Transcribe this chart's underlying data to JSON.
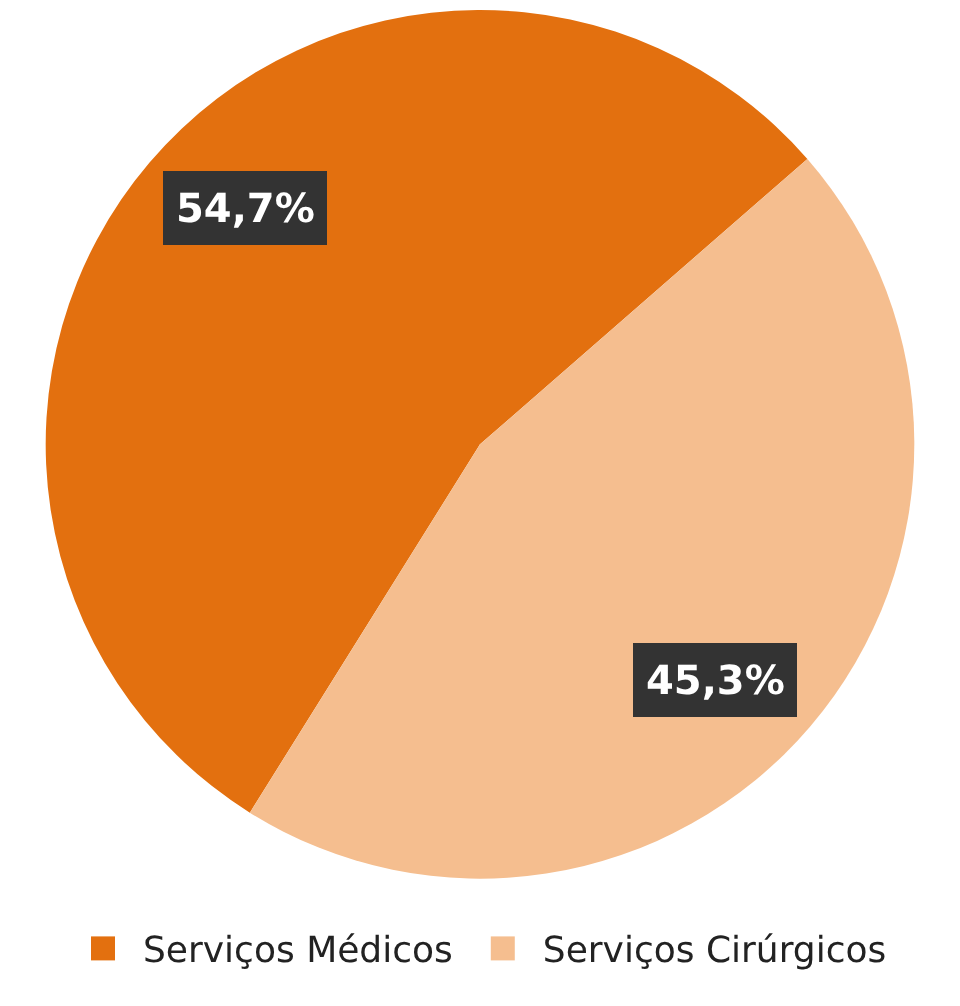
{
  "chart_data": {
    "type": "pie",
    "categories": [
      "Serviços Médicos",
      "Serviços Cirúrgicos"
    ],
    "values": [
      54.7,
      45.3
    ],
    "colors": [
      "#e3700f",
      "#f5be8f"
    ],
    "value_labels": [
      "54,7%",
      "45,3%"
    ],
    "legend": "bottom"
  }
}
